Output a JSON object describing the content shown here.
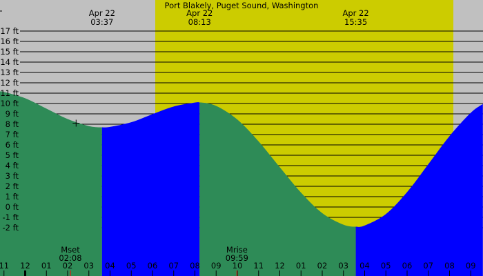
{
  "chart_data": {
    "type": "area",
    "title": "Port Blakely, Puget Sound, Washington",
    "xlabel": "",
    "ylabel": "",
    "ylim": [
      -2,
      17
    ],
    "xlim_hours": [
      -1.19,
      21.57
    ],
    "y_ticks": [
      {
        "value": 17,
        "label": "17 ft"
      },
      {
        "value": 16,
        "label": "16 ft"
      },
      {
        "value": 15,
        "label": "15 ft"
      },
      {
        "value": 14,
        "label": "14 ft"
      },
      {
        "value": 13,
        "label": "13 ft"
      },
      {
        "value": 12,
        "label": "12 ft"
      },
      {
        "value": 11,
        "label": "11 ft"
      },
      {
        "value": 10,
        "label": "10 ft"
      },
      {
        "value": 9,
        "label": "9 ft"
      },
      {
        "value": 8,
        "label": "8 ft"
      },
      {
        "value": 7,
        "label": "7 ft"
      },
      {
        "value": 6,
        "label": "6 ft"
      },
      {
        "value": 5,
        "label": "5 ft"
      },
      {
        "value": 4,
        "label": "4 ft"
      },
      {
        "value": 3,
        "label": "3 ft"
      },
      {
        "value": 2,
        "label": "2 ft"
      },
      {
        "value": 1,
        "label": "1 ft"
      },
      {
        "value": 0,
        "label": "0 ft"
      },
      {
        "value": -1,
        "label": "-1 ft"
      },
      {
        "value": -2,
        "label": "-2 ft"
      }
    ],
    "x_ticks": [
      {
        "hour": -1,
        "label": "11"
      },
      {
        "hour": 0,
        "label": "12",
        "midnight": true
      },
      {
        "hour": 1,
        "label": "01"
      },
      {
        "hour": 2,
        "label": "02"
      },
      {
        "hour": 3,
        "label": "03"
      },
      {
        "hour": 4,
        "label": "04"
      },
      {
        "hour": 5,
        "label": "05"
      },
      {
        "hour": 6,
        "label": "06"
      },
      {
        "hour": 7,
        "label": "07"
      },
      {
        "hour": 8,
        "label": "08"
      },
      {
        "hour": 9,
        "label": "09"
      },
      {
        "hour": 10,
        "label": "10"
      },
      {
        "hour": 11,
        "label": "11"
      },
      {
        "hour": 12,
        "label": "12"
      },
      {
        "hour": 13,
        "label": "01"
      },
      {
        "hour": 14,
        "label": "02"
      },
      {
        "hour": 15,
        "label": "03"
      },
      {
        "hour": 16,
        "label": "04"
      },
      {
        "hour": 17,
        "label": "05"
      },
      {
        "hour": 18,
        "label": "06"
      },
      {
        "hour": 19,
        "label": "07"
      },
      {
        "hour": 20,
        "label": "08"
      },
      {
        "hour": 21,
        "label": "09"
      }
    ],
    "extremes": [
      {
        "date": "Apr 22",
        "time": "03:37",
        "hour": 3.62,
        "ft": 7.7,
        "kind": "low"
      },
      {
        "date": "Apr 22",
        "time": "08:13",
        "hour": 8.22,
        "ft": 10.1,
        "kind": "high"
      },
      {
        "date": "Apr 22",
        "time": "15:35",
        "hour": 15.58,
        "ft": -1.9,
        "kind": "low"
      }
    ],
    "tide_ft": [
      {
        "hour": -1.19,
        "ft": 11.15
      },
      {
        "hour": -1,
        "ft": 11.12
      },
      {
        "hour": 0,
        "ft": 10.51
      },
      {
        "hour": 1,
        "ft": 9.51
      },
      {
        "hour": 2,
        "ft": 8.5
      },
      {
        "hour": 3,
        "ft": 7.82
      },
      {
        "hour": 4,
        "ft": 7.74
      },
      {
        "hour": 5,
        "ft": 8.19
      },
      {
        "hour": 6,
        "ft": 8.97
      },
      {
        "hour": 7,
        "ft": 9.71
      },
      {
        "hour": 8,
        "ft": 10.09
      },
      {
        "hour": 9,
        "ft": 9.77
      },
      {
        "hour": 10,
        "ft": 8.45
      },
      {
        "hour": 11,
        "ft": 6.34
      },
      {
        "hour": 12,
        "ft": 3.84
      },
      {
        "hour": 13,
        "ft": 1.39
      },
      {
        "hour": 14,
        "ft": -0.59
      },
      {
        "hour": 15,
        "ft": -1.71
      },
      {
        "hour": 16,
        "ft": -1.79
      },
      {
        "hour": 17,
        "ft": -0.68
      },
      {
        "hour": 18,
        "ft": 1.44
      },
      {
        "hour": 19,
        "ft": 4.13
      },
      {
        "hour": 20,
        "ft": 6.85
      },
      {
        "hour": 21,
        "ft": 9.1
      },
      {
        "hour": 21.57,
        "ft": 9.95
      }
    ],
    "daylight": {
      "start_hour": 6.13,
      "end_hour": 20.18
    },
    "moon_events": [
      {
        "label": "Mset",
        "time": "02:08",
        "hour": 2.13
      },
      {
        "label": "Mrise",
        "time": "09:59",
        "hour": 9.98
      }
    ],
    "marker": {
      "hour": 2.4,
      "ft": 8.1,
      "symbol": "+"
    },
    "grid": true,
    "legend": "none",
    "colors": {
      "night": "#c0c0c0",
      "day": "#cccc00",
      "falling_tide": "#2e8b57",
      "rising_tide": "#0000ff",
      "moon_tick": "#ff0000",
      "grid": "#000000"
    }
  }
}
